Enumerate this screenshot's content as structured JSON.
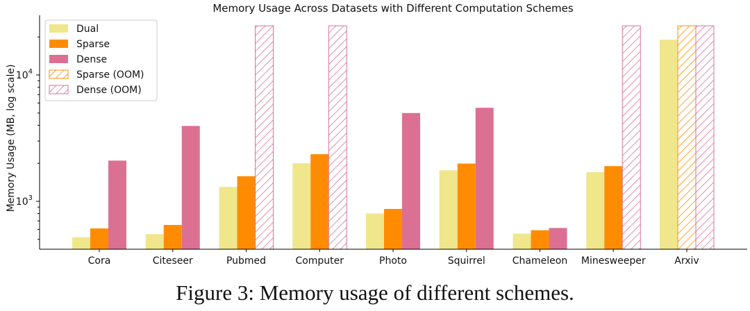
{
  "chart_data": {
    "type": "bar",
    "title": "Memory Usage Across Datasets with Different Computation Schemes",
    "ylabel": "Memory Usage (MB, log scale)",
    "xlabel": "",
    "yscale": "log",
    "ylim": [
      420,
      25000
    ],
    "yticks": [
      {
        "value": 1000,
        "base": "10",
        "exp": "3"
      },
      {
        "value": 10000,
        "base": "10",
        "exp": "4"
      }
    ],
    "categories": [
      "Cora",
      "Citeseer",
      "Pubmed",
      "Computer",
      "Photo",
      "Squirrel",
      "Chameleon",
      "Minesweeper",
      "Arxiv"
    ],
    "series": [
      {
        "name": "Dual",
        "color": "#f0e68c",
        "values": [
          520,
          550,
          1300,
          2000,
          800,
          1760,
          555,
          1700,
          19000
        ],
        "oom": [
          false,
          false,
          false,
          false,
          false,
          false,
          false,
          false,
          false
        ]
      },
      {
        "name": "Sparse",
        "color": "#ff8c00",
        "values": [
          610,
          650,
          1580,
          2360,
          870,
          1990,
          590,
          1900,
          24500
        ],
        "oom": [
          false,
          false,
          false,
          false,
          false,
          false,
          false,
          false,
          true
        ]
      },
      {
        "name": "Dense",
        "color": "#db7093",
        "values": [
          2100,
          3950,
          24500,
          24500,
          5000,
          5500,
          615,
          24500,
          24500
        ],
        "oom": [
          false,
          false,
          true,
          true,
          false,
          false,
          false,
          true,
          true
        ]
      }
    ],
    "legend": {
      "placement": "upper-left",
      "entries": [
        {
          "label": "Dual",
          "color": "#f0e68c",
          "hatched": false
        },
        {
          "label": "Sparse",
          "color": "#ff8c00",
          "hatched": false
        },
        {
          "label": "Dense",
          "color": "#db7093",
          "hatched": false
        },
        {
          "label": "Sparse (OOM)",
          "color": "#ff8c00",
          "hatched": true
        },
        {
          "label": "Dense (OOM)",
          "color": "#db7093",
          "hatched": true
        }
      ]
    }
  },
  "caption": "Figure 3: Memory usage of different schemes."
}
